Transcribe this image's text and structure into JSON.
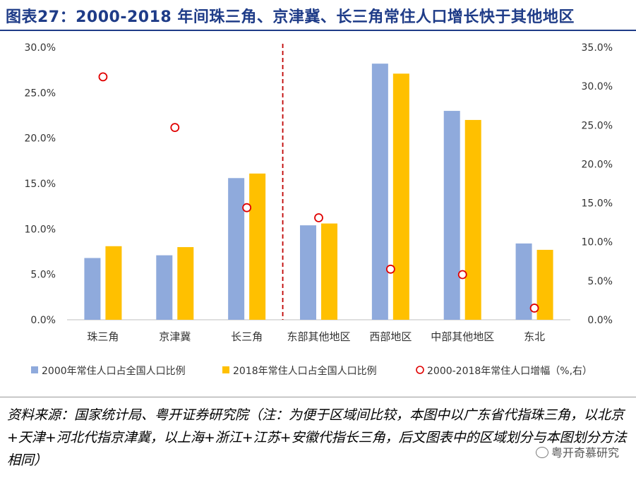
{
  "title": "图表27：2000-2018 年间珠三角、京津冀、长三角常住人口增长快于其他地区",
  "source_note": "资料来源：国家统计局、粤开证券研究院（注：为便于区域间比较，本图中以广东省代指珠三角，以北京+天津+河北代指京津冀，以上海+浙江+江苏+安徽代指长三角，后文图表中的区域划分与本图划分方法相同）",
  "watermark": "粤开奇慕研究",
  "colors": {
    "series_2000": "#8faadc",
    "series_2018": "#ffc000",
    "growth_marker": "#e00000",
    "divider": "#c00000",
    "title": "#1f3c88"
  },
  "chart_data": {
    "type": "bar",
    "categories": [
      "珠三角",
      "京津冀",
      "长三角",
      "东部其他地区",
      "西部地区",
      "中部其他地区",
      "东北"
    ],
    "series": [
      {
        "name": "2000年常住人口占全国人口比例",
        "axis": "left",
        "kind": "bar",
        "values": [
          6.8,
          7.1,
          15.6,
          10.4,
          28.2,
          23.0,
          8.4
        ]
      },
      {
        "name": "2018年常住人口占全国人口比例",
        "axis": "left",
        "kind": "bar",
        "values": [
          8.1,
          8.0,
          16.1,
          10.6,
          27.1,
          22.0,
          7.7
        ]
      },
      {
        "name": "2000-2018年常住人口增幅（%,右）",
        "axis": "right",
        "kind": "scatter",
        "values": [
          31.2,
          24.7,
          14.4,
          13.1,
          6.5,
          5.8,
          1.5
        ]
      }
    ],
    "y_left": {
      "min": 0,
      "max": 30,
      "step": 5,
      "tick_labels": [
        "0.0%",
        "5.0%",
        "10.0%",
        "15.0%",
        "20.0%",
        "25.0%",
        "30.0%"
      ]
    },
    "y_right": {
      "min": 0,
      "max": 35,
      "step": 5,
      "tick_labels": [
        "0.0%",
        "5.0%",
        "10.0%",
        "15.0%",
        "20.0%",
        "25.0%",
        "30.0%",
        "35.0%"
      ]
    },
    "divider_after_category": 2,
    "legend_position": "bottom"
  }
}
